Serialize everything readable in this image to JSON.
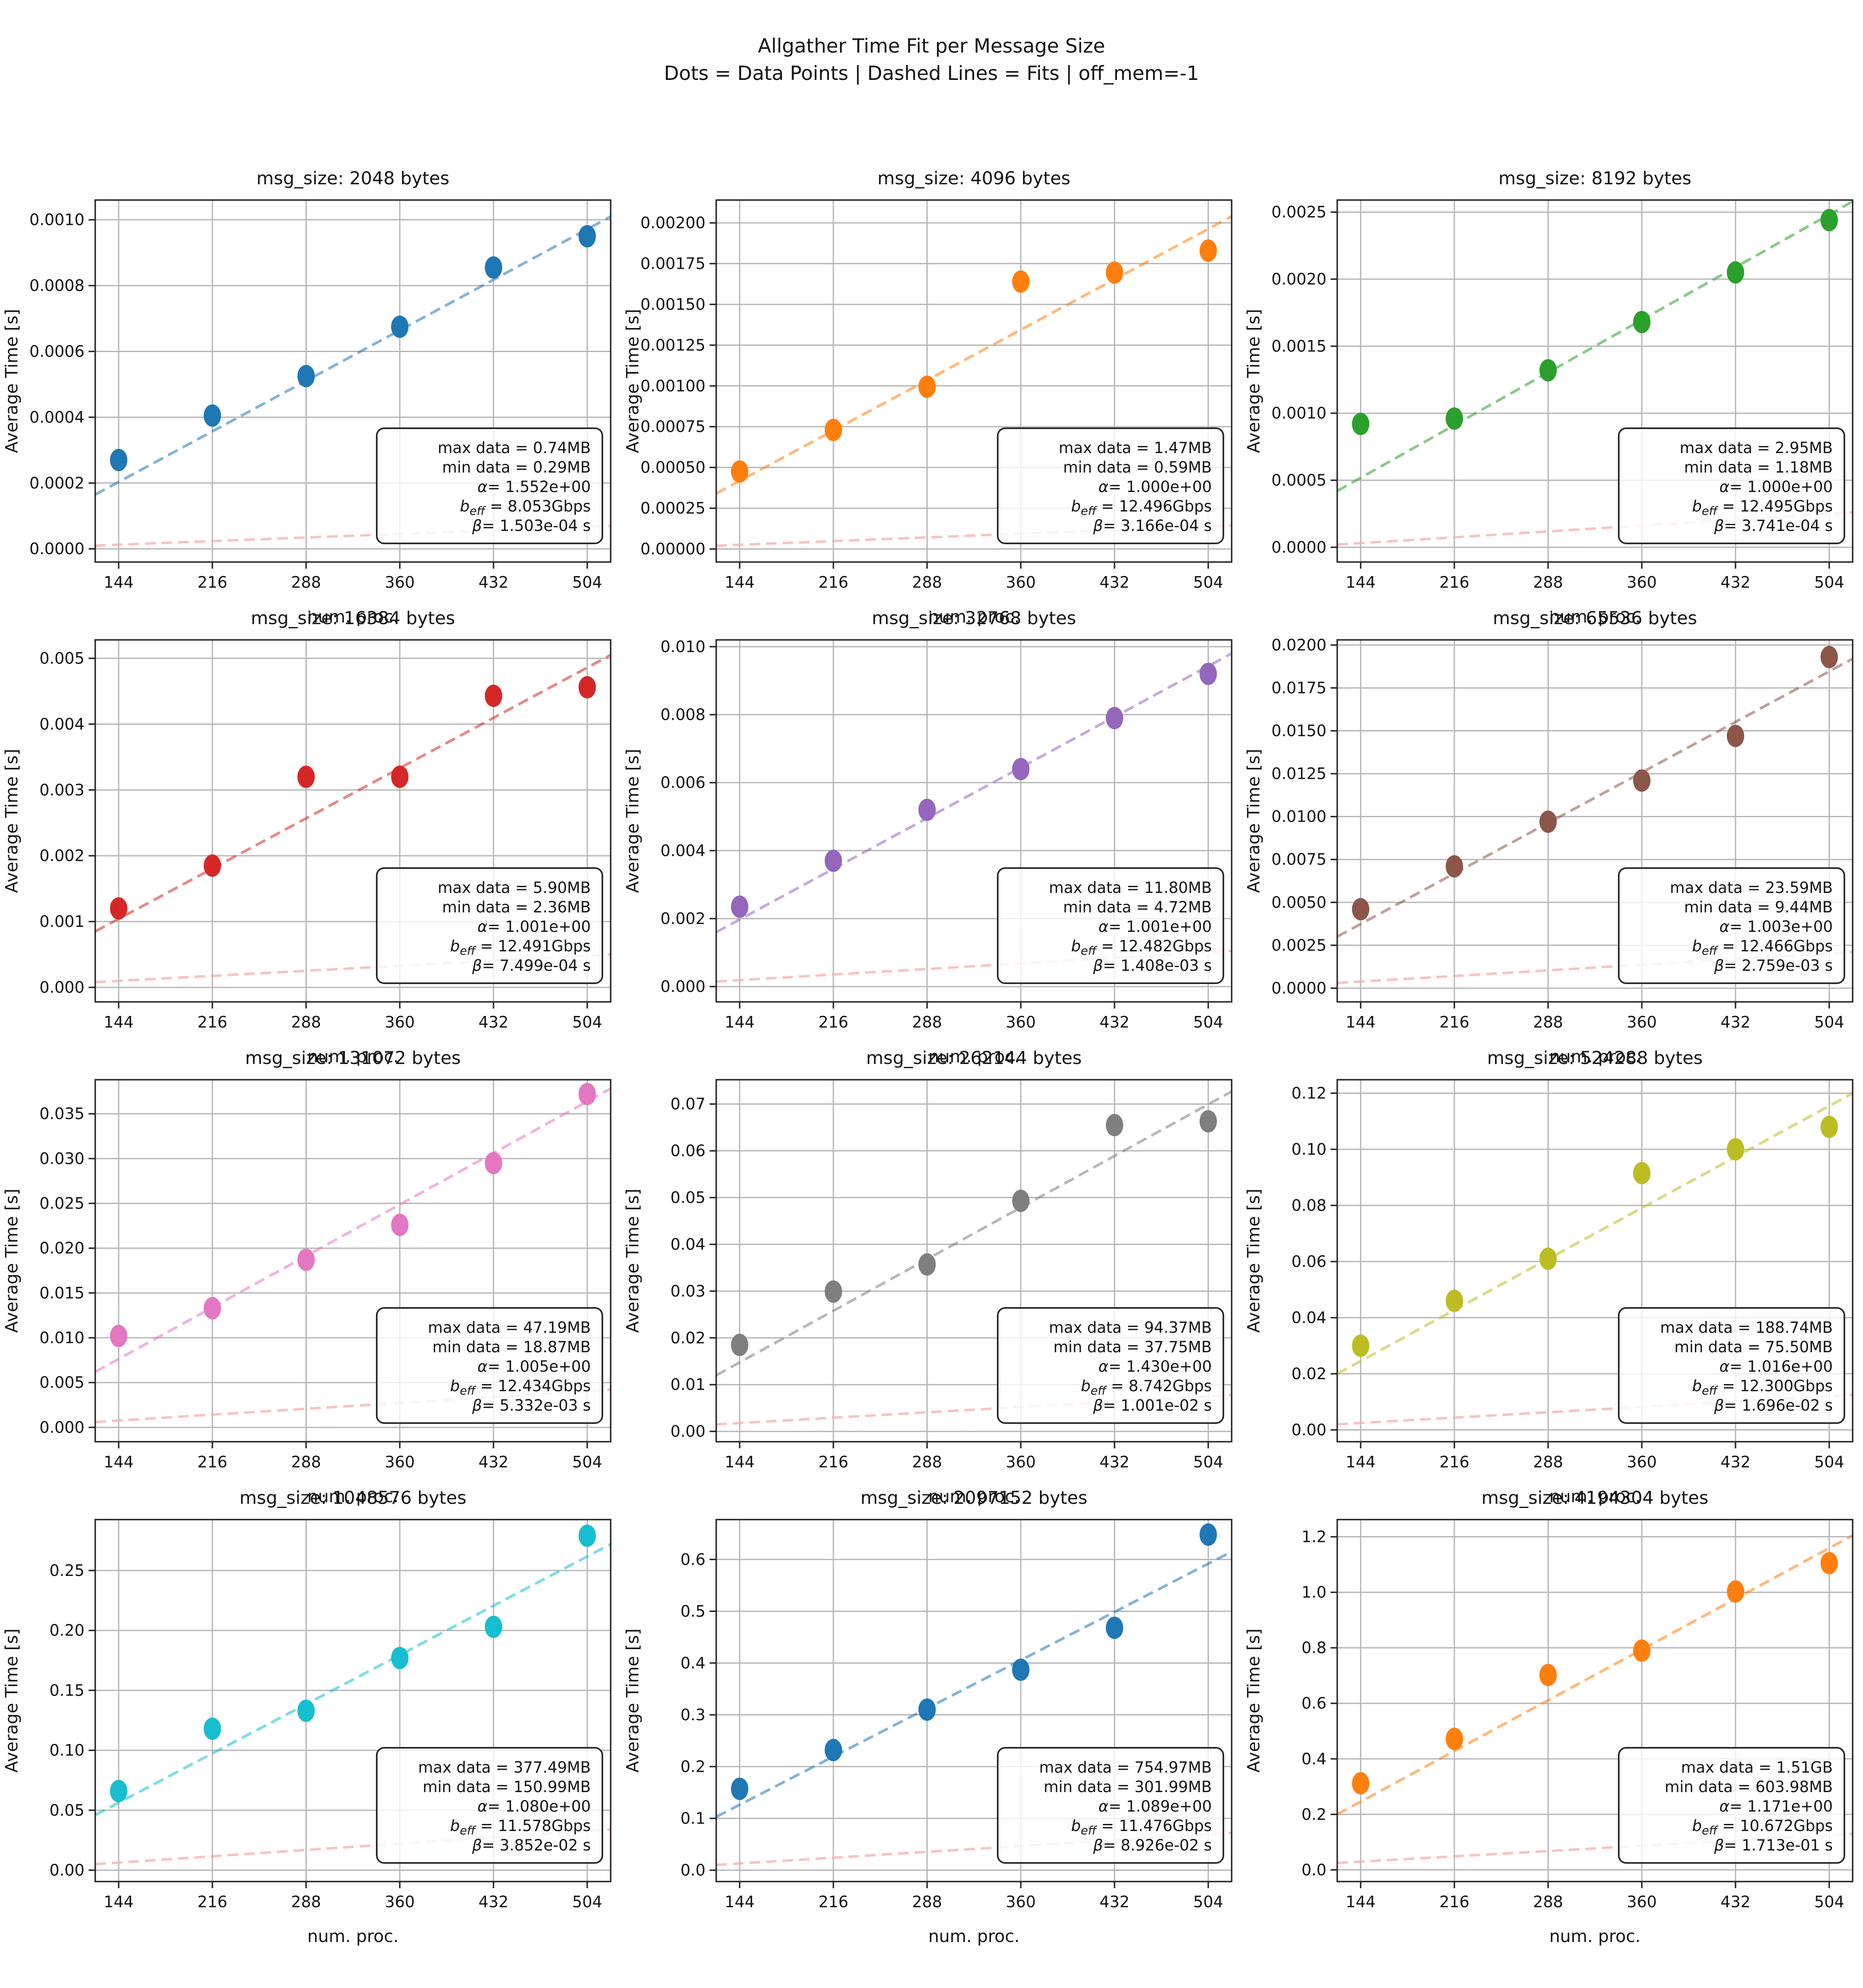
{
  "figure": {
    "title": "Allgather Time Fit per Message Size",
    "subtitle": "Dots = Data Points | Dashed Lines = Fits | off_mem=-1"
  },
  "axis": {
    "xlabel": "num. proc.",
    "ylabel": "Average Time [s]",
    "xticks": [
      144,
      216,
      288,
      360,
      432,
      504
    ],
    "xlim": [
      126,
      522
    ],
    "grid": true
  },
  "annotation_labels": {
    "max": "max data",
    "min": "min data",
    "alpha": "α",
    "beff_base": "b",
    "beff_sub": "eff",
    "beta": "β"
  },
  "styles": {
    "ref_line_color": "#f5aaaa",
    "grid_color": "#b5b5b5",
    "spine_color": "#262626",
    "text_color": "#141414"
  },
  "chart_data": [
    {
      "type": "scatter",
      "title": "msg_size: 2048 bytes",
      "color": "#1f77b4",
      "x": [
        144,
        216,
        288,
        360,
        432,
        504
      ],
      "y": [
        0.00027,
        0.000405,
        0.000525,
        0.000675,
        0.000855,
        0.00095
      ],
      "fit": {
        "x": [
          126,
          522
        ],
        "y": [
          0.000165,
          0.00101
        ]
      },
      "ref": {
        "x": [
          126,
          522
        ],
        "y": [
          1e-05,
          7e-05
        ]
      },
      "ylim": [
        -4e-05,
        0.00106
      ],
      "ytick_values": [
        0.0,
        0.0002,
        0.0004,
        0.0006,
        0.0008,
        0.001
      ],
      "ytick_labels": [
        "0.0000",
        "0.0002",
        "0.0004",
        "0.0006",
        "0.0008",
        "0.0010"
      ],
      "annotation": {
        "max_data": "0.74MB",
        "min_data": "0.29MB",
        "alpha": "1.552e+00",
        "beff": "8.053Gbps",
        "beta": "1.503e-04 s"
      }
    },
    {
      "type": "scatter",
      "title": "msg_size: 4096 bytes",
      "color": "#ff7f0e",
      "x": [
        144,
        216,
        288,
        360,
        432,
        504
      ],
      "y": [
        0.000475,
        0.00073,
        0.000995,
        0.00164,
        0.001695,
        0.00183
      ],
      "fit": {
        "x": [
          126,
          522
        ],
        "y": [
          0.00034,
          0.00204
        ]
      },
      "ref": {
        "x": [
          126,
          522
        ],
        "y": [
          2e-05,
          0.000145
        ]
      },
      "ylim": [
        -8e-05,
        0.00214
      ],
      "ytick_values": [
        0.0,
        0.00025,
        0.0005,
        0.00075,
        0.001,
        0.00125,
        0.0015,
        0.00175,
        0.002
      ],
      "ytick_labels": [
        "0.00000",
        "0.00025",
        "0.00050",
        "0.00075",
        "0.00100",
        "0.00125",
        "0.00150",
        "0.00175",
        "0.00200"
      ],
      "annotation": {
        "max_data": "1.47MB",
        "min_data": "0.59MB",
        "alpha": "1.000e+00",
        "beff": "12.496Gbps",
        "beta": "3.166e-04 s"
      }
    },
    {
      "type": "scatter",
      "title": "msg_size: 8192 bytes",
      "color": "#2ca02c",
      "x": [
        144,
        216,
        288,
        360,
        432,
        504
      ],
      "y": [
        0.00092,
        0.00096,
        0.00132,
        0.00168,
        0.00205,
        0.00244
      ],
      "fit": {
        "x": [
          126,
          522
        ],
        "y": [
          0.00042,
          0.00258
        ]
      },
      "ref": {
        "x": [
          126,
          522
        ],
        "y": [
          2e-05,
          0.00026
        ]
      },
      "ylim": [
        -0.00011,
        0.00259
      ],
      "ytick_values": [
        0.0,
        0.0005,
        0.001,
        0.0015,
        0.002,
        0.0025
      ],
      "ytick_labels": [
        "0.0000",
        "0.0005",
        "0.0010",
        "0.0015",
        "0.0020",
        "0.0025"
      ],
      "annotation": {
        "max_data": "2.95MB",
        "min_data": "1.18MB",
        "alpha": "1.000e+00",
        "beff": "12.495Gbps",
        "beta": "3.741e-04 s"
      }
    },
    {
      "type": "scatter",
      "title": "msg_size: 16384 bytes",
      "color": "#d62728",
      "x": [
        144,
        216,
        288,
        360,
        432,
        504
      ],
      "y": [
        0.0012,
        0.00185,
        0.0032,
        0.0032,
        0.00443,
        0.00456
      ],
      "fit": {
        "x": [
          126,
          522
        ],
        "y": [
          0.00085,
          0.00505
        ]
      },
      "ref": {
        "x": [
          126,
          522
        ],
        "y": [
          8e-05,
          0.0005
        ]
      },
      "ylim": [
        -0.00022,
        0.00528
      ],
      "ytick_values": [
        0.0,
        0.001,
        0.002,
        0.003,
        0.004,
        0.005
      ],
      "ytick_labels": [
        "0.000",
        "0.001",
        "0.002",
        "0.003",
        "0.004",
        "0.005"
      ],
      "annotation": {
        "max_data": "5.90MB",
        "min_data": "2.36MB",
        "alpha": "1.001e+00",
        "beff": "12.491Gbps",
        "beta": "7.499e-04 s"
      }
    },
    {
      "type": "scatter",
      "title": "msg_size: 32768 bytes",
      "color": "#9467bd",
      "x": [
        144,
        216,
        288,
        360,
        432,
        504
      ],
      "y": [
        0.00235,
        0.0037,
        0.0052,
        0.0064,
        0.0079,
        0.0092
      ],
      "fit": {
        "x": [
          126,
          522
        ],
        "y": [
          0.0016,
          0.0098
        ]
      },
      "ref": {
        "x": [
          126,
          522
        ],
        "y": [
          0.00015,
          0.00105
        ]
      },
      "ylim": [
        -0.00045,
        0.0102
      ],
      "ytick_values": [
        0.0,
        0.002,
        0.004,
        0.006,
        0.008,
        0.01
      ],
      "ytick_labels": [
        "0.000",
        "0.002",
        "0.004",
        "0.006",
        "0.008",
        "0.010"
      ],
      "annotation": {
        "max_data": "11.80MB",
        "min_data": "4.72MB",
        "alpha": "1.001e+00",
        "beff": "12.482Gbps",
        "beta": "1.408e-03 s"
      }
    },
    {
      "type": "scatter",
      "title": "msg_size: 65536 bytes",
      "color": "#8c564b",
      "x": [
        144,
        216,
        288,
        360,
        432,
        504
      ],
      "y": [
        0.0046,
        0.0071,
        0.0097,
        0.0121,
        0.0147,
        0.0193
      ],
      "fit": {
        "x": [
          126,
          522
        ],
        "y": [
          0.003,
          0.0192
        ]
      },
      "ref": {
        "x": [
          126,
          522
        ],
        "y": [
          0.0003,
          0.0021
        ]
      },
      "ylim": [
        -0.0008,
        0.0203
      ],
      "ytick_values": [
        0.0,
        0.0025,
        0.005,
        0.0075,
        0.01,
        0.0125,
        0.015,
        0.0175,
        0.02
      ],
      "ytick_labels": [
        "0.0000",
        "0.0025",
        "0.0050",
        "0.0075",
        "0.0100",
        "0.0125",
        "0.0150",
        "0.0175",
        "0.0200"
      ],
      "annotation": {
        "max_data": "23.59MB",
        "min_data": "9.44MB",
        "alpha": "1.003e+00",
        "beff": "12.466Gbps",
        "beta": "2.759e-03 s"
      }
    },
    {
      "type": "scatter",
      "title": "msg_size: 131072 bytes",
      "color": "#e377c2",
      "x": [
        144,
        216,
        288,
        360,
        432,
        504
      ],
      "y": [
        0.0102,
        0.0133,
        0.0187,
        0.0226,
        0.0295,
        0.0372
      ],
      "fit": {
        "x": [
          126,
          522
        ],
        "y": [
          0.0062,
          0.0378
        ]
      },
      "ref": {
        "x": [
          126,
          522
        ],
        "y": [
          0.0006,
          0.0042
        ]
      },
      "ylim": [
        -0.0016,
        0.0388
      ],
      "ytick_values": [
        0.0,
        0.005,
        0.01,
        0.015,
        0.02,
        0.025,
        0.03,
        0.035
      ],
      "ytick_labels": [
        "0.000",
        "0.005",
        "0.010",
        "0.015",
        "0.020",
        "0.025",
        "0.030",
        "0.035"
      ],
      "annotation": {
        "max_data": "47.19MB",
        "min_data": "18.87MB",
        "alpha": "1.005e+00",
        "beff": "12.434Gbps",
        "beta": "5.332e-03 s"
      }
    },
    {
      "type": "scatter",
      "title": "msg_size: 262144 bytes",
      "color": "#7f7f7f",
      "x": [
        144,
        216,
        288,
        360,
        432,
        504
      ],
      "y": [
        0.0185,
        0.0299,
        0.0357,
        0.0493,
        0.0655,
        0.0663
      ],
      "fit": {
        "x": [
          126,
          522
        ],
        "y": [
          0.012,
          0.0727
        ]
      },
      "ref": {
        "x": [
          126,
          522
        ],
        "y": [
          0.0015,
          0.0078
        ]
      },
      "ylim": [
        -0.0022,
        0.0752
      ],
      "ytick_values": [
        0.0,
        0.01,
        0.02,
        0.03,
        0.04,
        0.05,
        0.06,
        0.07
      ],
      "ytick_labels": [
        "0.00",
        "0.01",
        "0.02",
        "0.03",
        "0.04",
        "0.05",
        "0.06",
        "0.07"
      ],
      "annotation": {
        "max_data": "94.37MB",
        "min_data": "37.75MB",
        "alpha": "1.430e+00",
        "beff": "8.742Gbps",
        "beta": "1.001e-02 s"
      }
    },
    {
      "type": "scatter",
      "title": "msg_size: 524288 bytes",
      "color": "#bcbd22",
      "x": [
        144,
        216,
        288,
        360,
        432,
        504
      ],
      "y": [
        0.03,
        0.046,
        0.061,
        0.0915,
        0.1,
        0.108
      ],
      "fit": {
        "x": [
          126,
          522
        ],
        "y": [
          0.02,
          0.12
        ]
      },
      "ref": {
        "x": [
          126,
          522
        ],
        "y": [
          0.002,
          0.0125
        ]
      },
      "ylim": [
        -0.0042,
        0.1248
      ],
      "ytick_values": [
        0.0,
        0.02,
        0.04,
        0.06,
        0.08,
        0.1,
        0.12
      ],
      "ytick_labels": [
        "0.00",
        "0.02",
        "0.04",
        "0.06",
        "0.08",
        "0.10",
        "0.12"
      ],
      "annotation": {
        "max_data": "188.74MB",
        "min_data": "75.50MB",
        "alpha": "1.016e+00",
        "beff": "12.300Gbps",
        "beta": "1.696e-02 s"
      }
    },
    {
      "type": "scatter",
      "title": "msg_size: 1048576 bytes",
      "color": "#17becf",
      "x": [
        144,
        216,
        288,
        360,
        432,
        504
      ],
      "y": [
        0.066,
        0.118,
        0.133,
        0.177,
        0.203,
        0.279
      ],
      "fit": {
        "x": [
          126,
          522
        ],
        "y": [
          0.046,
          0.272
        ]
      },
      "ref": {
        "x": [
          126,
          522
        ],
        "y": [
          0.005,
          0.034
        ]
      },
      "ylim": [
        -0.0095,
        0.2925
      ],
      "ytick_values": [
        0.0,
        0.05,
        0.1,
        0.15,
        0.2,
        0.25
      ],
      "ytick_labels": [
        "0.00",
        "0.05",
        "0.10",
        "0.15",
        "0.20",
        "0.25"
      ],
      "annotation": {
        "max_data": "377.49MB",
        "min_data": "150.99MB",
        "alpha": "1.080e+00",
        "beff": "11.578Gbps",
        "beta": "3.852e-02 s"
      }
    },
    {
      "type": "scatter",
      "title": "msg_size: 2097152 bytes",
      "color": "#1f77b4",
      "x": [
        144,
        216,
        288,
        360,
        432,
        504
      ],
      "y": [
        0.157,
        0.232,
        0.31,
        0.387,
        0.468,
        0.648
      ],
      "fit": {
        "x": [
          126,
          522
        ],
        "y": [
          0.103,
          0.615
        ]
      },
      "ref": {
        "x": [
          126,
          522
        ],
        "y": [
          0.01,
          0.072
        ]
      },
      "ylim": [
        -0.022,
        0.677
      ],
      "ytick_values": [
        0.0,
        0.1,
        0.2,
        0.3,
        0.4,
        0.5,
        0.6
      ],
      "ytick_labels": [
        "0.0",
        "0.1",
        "0.2",
        "0.3",
        "0.4",
        "0.5",
        "0.6"
      ],
      "annotation": {
        "max_data": "754.97MB",
        "min_data": "301.99MB",
        "alpha": "1.089e+00",
        "beff": "11.476Gbps",
        "beta": "8.926e-02 s"
      }
    },
    {
      "type": "scatter",
      "title": "msg_size: 4194304 bytes",
      "color": "#ff7f0e",
      "x": [
        144,
        216,
        288,
        360,
        432,
        504
      ],
      "y": [
        0.312,
        0.472,
        0.702,
        0.79,
        1.003,
        1.105
      ],
      "fit": {
        "x": [
          126,
          522
        ],
        "y": [
          0.2,
          1.205
        ]
      },
      "ref": {
        "x": [
          126,
          522
        ],
        "y": [
          0.025,
          0.13
        ]
      },
      "ylim": [
        -0.042,
        1.262
      ],
      "ytick_values": [
        0.0,
        0.2,
        0.4,
        0.6,
        0.8,
        1.0,
        1.2
      ],
      "ytick_labels": [
        "0.0",
        "0.2",
        "0.4",
        "0.6",
        "0.8",
        "1.0",
        "1.2"
      ],
      "annotation": {
        "max_data": "1.51GB",
        "min_data": "603.98MB",
        "alpha": "1.171e+00",
        "beff": "10.672Gbps",
        "beta": "1.713e-01 s"
      }
    }
  ]
}
